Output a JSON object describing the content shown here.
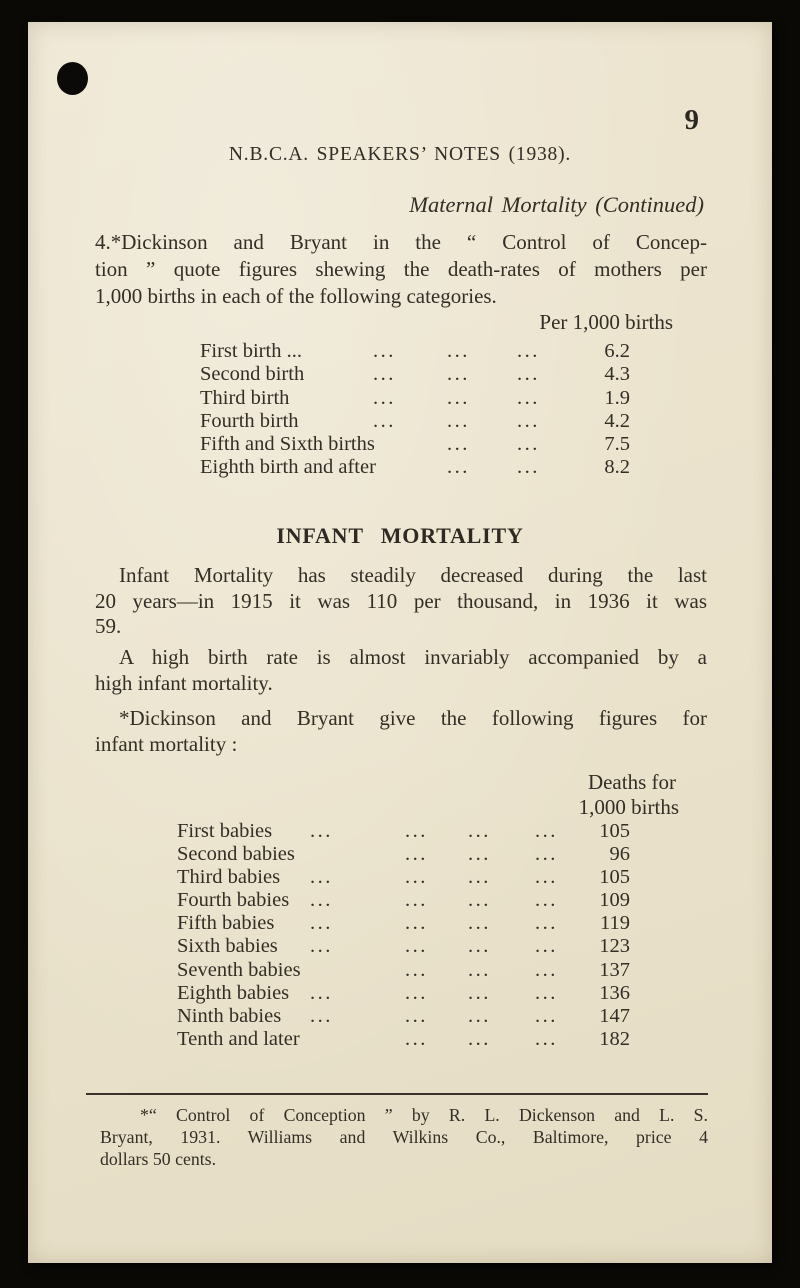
{
  "page": {
    "number": "9",
    "header": "N.B.C.A. SPEAKERS’ NOTES (1938).",
    "subtitle": "Maternal Mortality (Continued)"
  },
  "para_intro": {
    "lines": [
      "4.*Dickinson and Bryant in the “ Control of Concep-",
      "tion ” quote figures shewing the death-rates of mothers per",
      "1,000 births in each of the following categories."
    ]
  },
  "table1": {
    "header": "Per 1,000 births",
    "rows": [
      {
        "label": "First birth ...",
        "d1": "...",
        "d2": "...",
        "d3": "...",
        "value": "6.2"
      },
      {
        "label": "Second birth",
        "d1": "...",
        "d2": "...",
        "d3": "...",
        "value": "4.3"
      },
      {
        "label": "Third birth",
        "d1": "...",
        "d2": "...",
        "d3": "...",
        "value": "1.9"
      },
      {
        "label": "Fourth birth",
        "d1": "...",
        "d2": "...",
        "d3": "...",
        "value": "4.2"
      },
      {
        "label": "Fifth and Sixth births",
        "d1": "",
        "d2": "...",
        "d3": "...",
        "value": "7.5"
      },
      {
        "label": "Eighth birth and after",
        "d1": "",
        "d2": "...",
        "d3": "...",
        "value": "8.2"
      }
    ]
  },
  "section": {
    "title": "INFANT MORTALITY"
  },
  "para_infant": {
    "lines": [
      "Infant Mortality has steadily decreased during the last",
      "20 years—in 1915 it was 110 per thousand, in 1936 it was",
      "59."
    ]
  },
  "para_high": {
    "lines": [
      "A high birth rate is almost invariably accompanied by a",
      "high infant mortality."
    ]
  },
  "para_dick": {
    "lines": [
      "*Dickinson and Bryant give the following figures for",
      "infant mortality :"
    ]
  },
  "table2": {
    "header_line1": "Deaths for",
    "header_line2": "1,000 births",
    "rows": [
      {
        "label": "First babies",
        "ld": "...",
        "d1": "...",
        "d2": "...",
        "d3": "...",
        "value": "105"
      },
      {
        "label": "Second babies",
        "ld": "",
        "d1": "...",
        "d2": "...",
        "d3": "...",
        "value": "96"
      },
      {
        "label": "Third babies",
        "ld": "...",
        "d1": "...",
        "d2": "...",
        "d3": "...",
        "value": "105"
      },
      {
        "label": "Fourth babies",
        "ld": "...",
        "d1": "...",
        "d2": "...",
        "d3": "...",
        "value": "109"
      },
      {
        "label": "Fifth babies",
        "ld": "...",
        "d1": "...",
        "d2": "...",
        "d3": "...",
        "value": "119"
      },
      {
        "label": "Sixth babies",
        "ld": "...",
        "d1": "...",
        "d2": "...",
        "d3": "...",
        "value": "123"
      },
      {
        "label": "Seventh babies",
        "ld": "",
        "d1": "...",
        "d2": "...",
        "d3": "...",
        "value": "137"
      },
      {
        "label": "Eighth babies",
        "ld": "...",
        "d1": "...",
        "d2": "...",
        "d3": "...",
        "value": "136"
      },
      {
        "label": "Ninth babies",
        "ld": "...",
        "d1": "...",
        "d2": "...",
        "d3": "...",
        "value": "147"
      },
      {
        "label": "Tenth and later",
        "ld": "",
        "d1": "...",
        "d2": "...",
        "d3": "...",
        "value": "182"
      }
    ]
  },
  "footnote": {
    "lines": [
      "*“ Control of Conception ” by R. L. Dickenson and L. S.",
      "Bryant, 1931. Williams and Wilkins Co., Baltimore, price 4",
      "dollars 50 cents."
    ]
  }
}
